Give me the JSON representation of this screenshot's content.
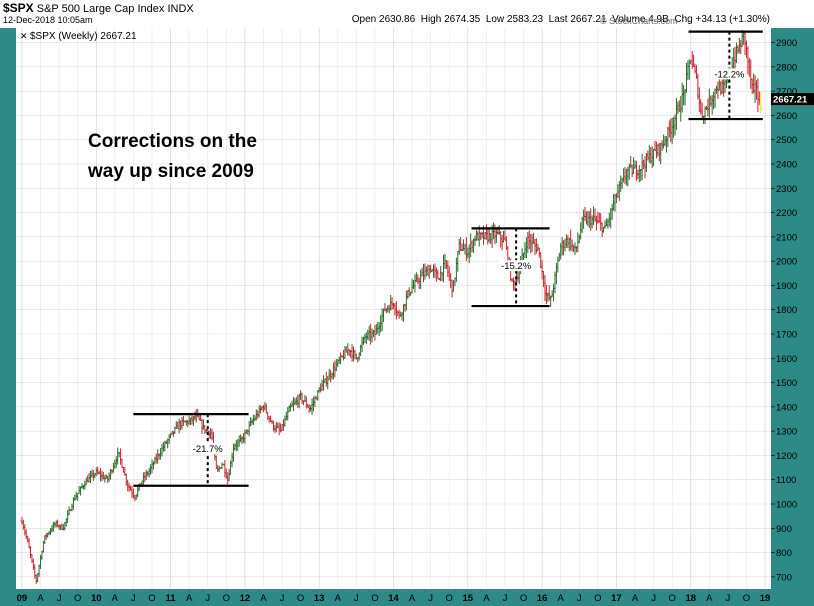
{
  "header": {
    "symbol": "$SPX",
    "name": "S&P 500 Large Cap Index",
    "exchange": "INDX",
    "datetime": "12-Dec-2018 10:05am",
    "quote": {
      "open_label": "Open",
      "open": "2630.86",
      "high_label": "High",
      "high": "2674.35",
      "low_label": "Low",
      "low": "2583.23",
      "last_label": "Last",
      "last": "2667.21",
      "volume_label": "Volume",
      "volume": "4.9B",
      "chg_label": "Chg",
      "chg": "+34.13 (+1.30%)"
    },
    "watermark": "© StockCharts.com"
  },
  "colors": {
    "frame": "#2e8a86",
    "up": "#2d6a2d",
    "down": "#cc2233",
    "yellow": "#f2e600",
    "text": "#000000"
  },
  "chart_data": {
    "type": "ohlc-bar",
    "series_label": "$SPX (Weekly) 2667.21",
    "annotation": "Corrections on the way up since 2009",
    "last_value_label": "2667.21",
    "ylim": [
      650,
      2960
    ],
    "y_ticks": [
      700,
      800,
      900,
      1000,
      1100,
      1200,
      1300,
      1400,
      1500,
      1600,
      1700,
      1800,
      1900,
      2000,
      2100,
      2200,
      2300,
      2400,
      2500,
      2600,
      2700,
      2800,
      2900
    ],
    "xlim": [
      2008.92,
      2019.08
    ],
    "x_ticks": [
      {
        "label": "09",
        "t": 2009.0
      },
      {
        "label": "A",
        "t": 2009.25
      },
      {
        "label": "J",
        "t": 2009.5
      },
      {
        "label": "O",
        "t": 2009.75
      },
      {
        "label": "10",
        "t": 2010.0
      },
      {
        "label": "A",
        "t": 2010.25
      },
      {
        "label": "J",
        "t": 2010.5
      },
      {
        "label": "O",
        "t": 2010.75
      },
      {
        "label": "11",
        "t": 2011.0
      },
      {
        "label": "A",
        "t": 2011.25
      },
      {
        "label": "J",
        "t": 2011.5
      },
      {
        "label": "O",
        "t": 2011.75
      },
      {
        "label": "12",
        "t": 2012.0
      },
      {
        "label": "A",
        "t": 2012.25
      },
      {
        "label": "J",
        "t": 2012.5
      },
      {
        "label": "O",
        "t": 2012.75
      },
      {
        "label": "13",
        "t": 2013.0
      },
      {
        "label": "A",
        "t": 2013.25
      },
      {
        "label": "J",
        "t": 2013.5
      },
      {
        "label": "O",
        "t": 2013.75
      },
      {
        "label": "14",
        "t": 2014.0
      },
      {
        "label": "A",
        "t": 2014.25
      },
      {
        "label": "J",
        "t": 2014.5
      },
      {
        "label": "O",
        "t": 2014.75
      },
      {
        "label": "15",
        "t": 2015.0
      },
      {
        "label": "A",
        "t": 2015.25
      },
      {
        "label": "J",
        "t": 2015.5
      },
      {
        "label": "O",
        "t": 2015.75
      },
      {
        "label": "16",
        "t": 2016.0
      },
      {
        "label": "A",
        "t": 2016.25
      },
      {
        "label": "J",
        "t": 2016.5
      },
      {
        "label": "O",
        "t": 2016.75
      },
      {
        "label": "17",
        "t": 2017.0
      },
      {
        "label": "A",
        "t": 2017.25
      },
      {
        "label": "J",
        "t": 2017.5
      },
      {
        "label": "O",
        "t": 2017.75
      },
      {
        "label": "18",
        "t": 2018.0
      },
      {
        "label": "A",
        "t": 2018.25
      },
      {
        "label": "J",
        "t": 2018.5
      },
      {
        "label": "O",
        "t": 2018.75
      },
      {
        "label": "19",
        "t": 2019.0
      }
    ],
    "path": [
      [
        2009.0,
        930
      ],
      [
        2009.08,
        840
      ],
      [
        2009.19,
        680
      ],
      [
        2009.3,
        860
      ],
      [
        2009.45,
        920
      ],
      [
        2009.55,
        900
      ],
      [
        2009.7,
        1020
      ],
      [
        2009.85,
        1090
      ],
      [
        2010.0,
        1130
      ],
      [
        2010.15,
        1100
      ],
      [
        2010.3,
        1210
      ],
      [
        2010.42,
        1080
      ],
      [
        2010.52,
        1030
      ],
      [
        2010.6,
        1090
      ],
      [
        2010.72,
        1140
      ],
      [
        2010.85,
        1210
      ],
      [
        2011.0,
        1280
      ],
      [
        2011.12,
        1330
      ],
      [
        2011.25,
        1340
      ],
      [
        2011.35,
        1360
      ],
      [
        2011.45,
        1310
      ],
      [
        2011.55,
        1290
      ],
      [
        2011.62,
        1130
      ],
      [
        2011.7,
        1170
      ],
      [
        2011.77,
        1100
      ],
      [
        2011.85,
        1240
      ],
      [
        2011.95,
        1260
      ],
      [
        2012.1,
        1340
      ],
      [
        2012.25,
        1405
      ],
      [
        2012.38,
        1320
      ],
      [
        2012.48,
        1300
      ],
      [
        2012.6,
        1390
      ],
      [
        2012.75,
        1440
      ],
      [
        2012.88,
        1390
      ],
      [
        2013.0,
        1470
      ],
      [
        2013.12,
        1520
      ],
      [
        2013.25,
        1580
      ],
      [
        2013.4,
        1640
      ],
      [
        2013.5,
        1600
      ],
      [
        2013.62,
        1690
      ],
      [
        2013.75,
        1700
      ],
      [
        2013.88,
        1800
      ],
      [
        2014.0,
        1830
      ],
      [
        2014.08,
        1770
      ],
      [
        2014.2,
        1870
      ],
      [
        2014.35,
        1930
      ],
      [
        2014.5,
        1970
      ],
      [
        2014.6,
        1930
      ],
      [
        2014.7,
        1990
      ],
      [
        2014.8,
        1880
      ],
      [
        2014.88,
        2060
      ],
      [
        2015.0,
        2040
      ],
      [
        2015.1,
        2100
      ],
      [
        2015.25,
        2100
      ],
      [
        2015.4,
        2110
      ],
      [
        2015.5,
        2080
      ],
      [
        2015.6,
        1900
      ],
      [
        2015.68,
        1950
      ],
      [
        2015.8,
        2090
      ],
      [
        2015.95,
        2050
      ],
      [
        2016.05,
        1860
      ],
      [
        2016.12,
        1840
      ],
      [
        2016.25,
        2060
      ],
      [
        2016.35,
        2090
      ],
      [
        2016.45,
        2040
      ],
      [
        2016.55,
        2170
      ],
      [
        2016.7,
        2170
      ],
      [
        2016.85,
        2130
      ],
      [
        2017.0,
        2270
      ],
      [
        2017.15,
        2370
      ],
      [
        2017.3,
        2380
      ],
      [
        2017.45,
        2430
      ],
      [
        2017.6,
        2470
      ],
      [
        2017.75,
        2560
      ],
      [
        2017.9,
        2680
      ],
      [
        2018.0,
        2840
      ],
      [
        2018.08,
        2740
      ],
      [
        2018.14,
        2600
      ],
      [
        2018.25,
        2650
      ],
      [
        2018.35,
        2720
      ],
      [
        2018.45,
        2710
      ],
      [
        2018.55,
        2810
      ],
      [
        2018.65,
        2880
      ],
      [
        2018.72,
        2930
      ],
      [
        2018.78,
        2800
      ],
      [
        2018.85,
        2670
      ],
      [
        2018.88,
        2740
      ],
      [
        2018.92,
        2630
      ],
      [
        2018.96,
        2650
      ]
    ],
    "annotations": [
      {
        "label": "-21.7%",
        "top": 1370,
        "bottom": 1075,
        "x1": 2010.5,
        "x2": 2012.05,
        "dash_x": 2011.5
      },
      {
        "label": "-15.2%",
        "top": 2135,
        "bottom": 1815,
        "x1": 2015.05,
        "x2": 2016.1,
        "dash_x": 2015.65
      },
      {
        "label": "-12.2%",
        "top": 2945,
        "bottom": 2585,
        "x1": 2017.97,
        "x2": 2018.97,
        "dash_x": 2018.52
      }
    ]
  }
}
